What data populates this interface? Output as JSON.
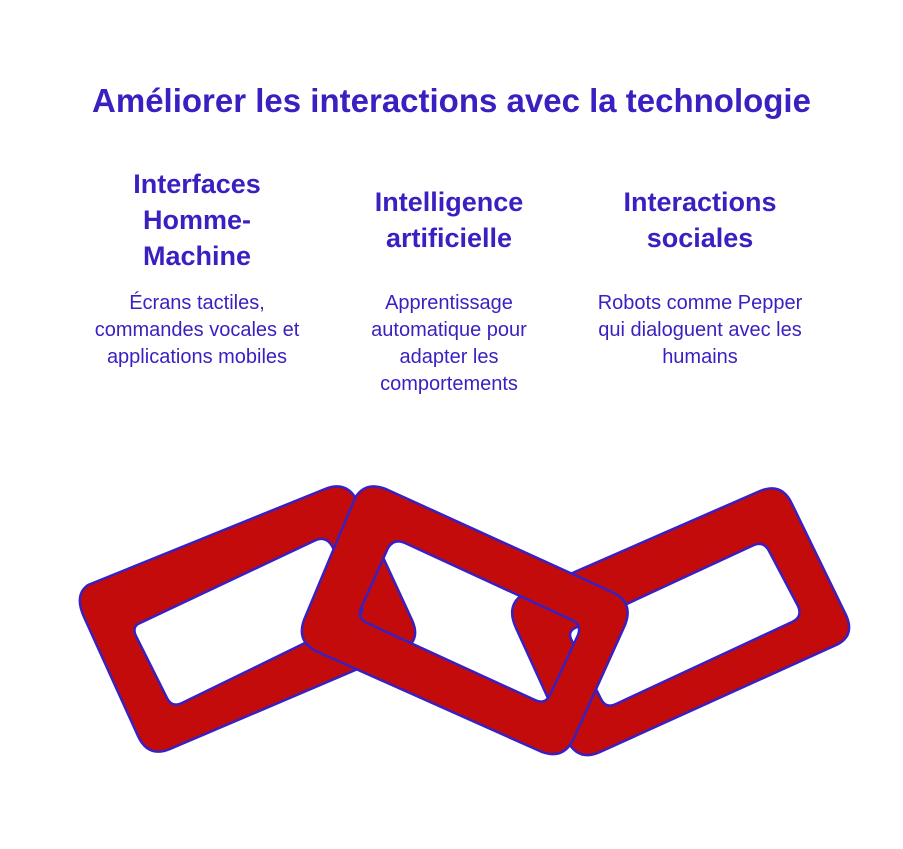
{
  "title": "Améliorer les interactions avec la technologie",
  "columns": [
    {
      "heading": "Interfaces Homme-Machine",
      "description": "Écrans tactiles, commandes vocales et applications mobiles"
    },
    {
      "heading": "Intelligence artificielle",
      "description": "Apprentissage automatique pour adapter les comportements"
    },
    {
      "heading": "Interactions sociales",
      "description": "Robots comme Pepper qui dialoguent avec les humains"
    }
  ],
  "colors": {
    "accent": "#3a1fc1",
    "link_fill": "#c40b0b",
    "link_stroke": "#3a1fc1",
    "background": "#ffffff"
  },
  "icons": [
    "chain-link-icon"
  ]
}
